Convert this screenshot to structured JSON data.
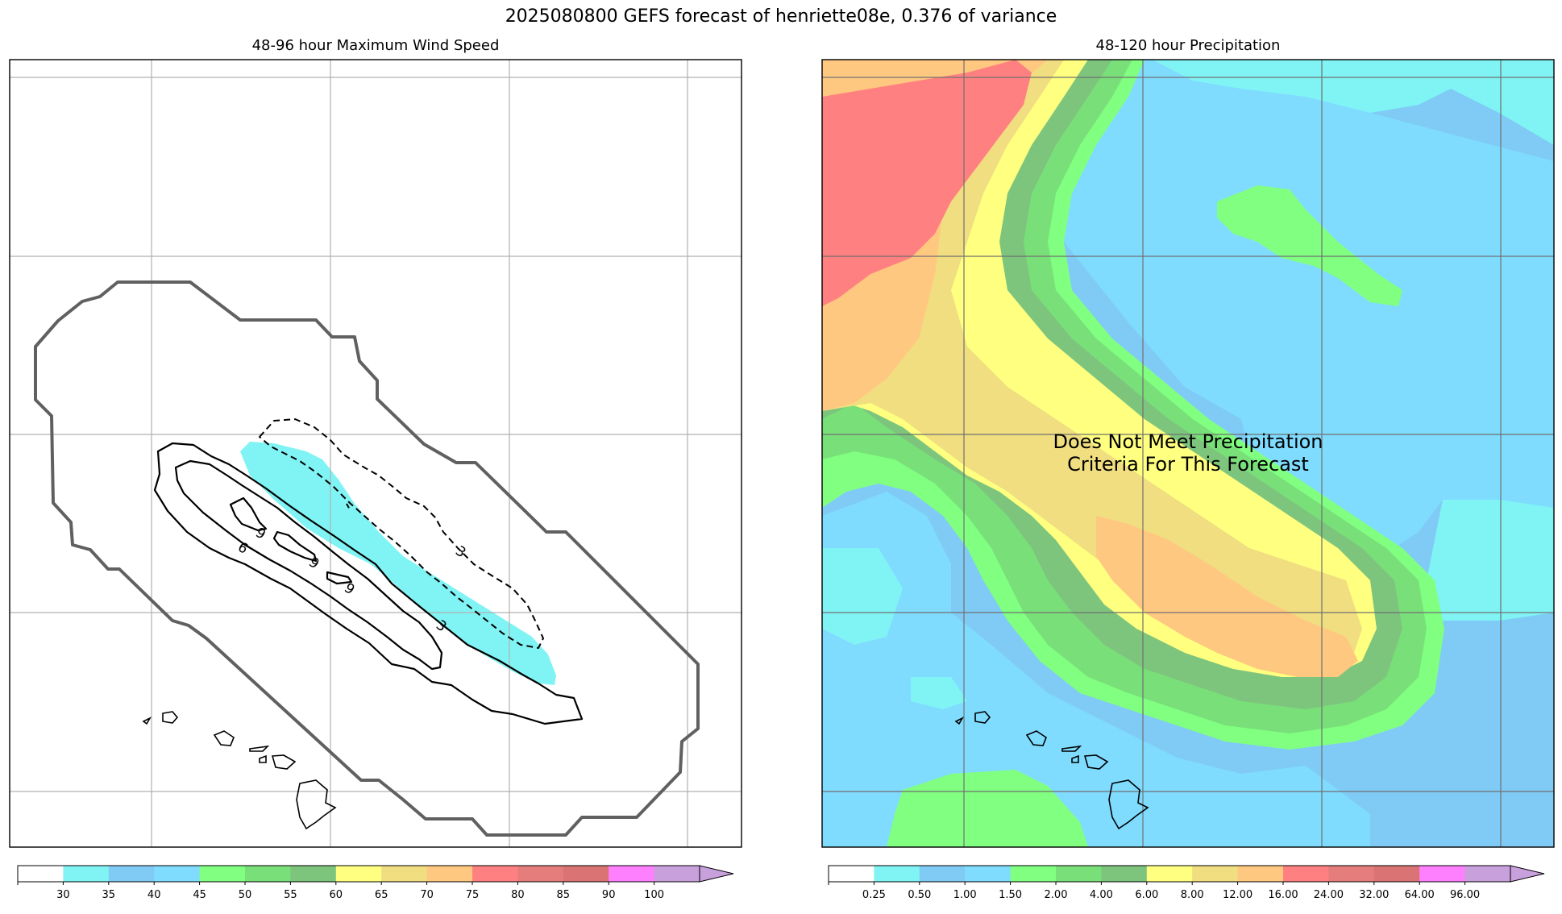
{
  "suptitle": "2025080800 GEFS forecast of henriette08e, 0.376 of variance",
  "chart_data": [
    {
      "type": "contour-map",
      "title": "48-96 hour Maximum Wind Speed",
      "colorbar": {
        "levels": [
          30,
          35,
          40,
          45,
          50,
          55,
          60,
          65,
          70,
          75,
          80,
          85,
          90,
          100
        ],
        "colors": [
          "#ffffff",
          "#80f4f4",
          "#7fcbf6",
          "#7fdcff",
          "#80ff80",
          "#79e079",
          "#7dc57d",
          "#ffff80",
          "#f0de80",
          "#ffc880",
          "#ff8080",
          "#e57d7d",
          "#da7373",
          "#ff80ff",
          "#c8a0dc"
        ],
        "extend": "max"
      },
      "contour_labels": [
        "3",
        "3",
        "6",
        "9",
        "9",
        "9"
      ],
      "shaded_wind_region": "35-40",
      "grid": true
    },
    {
      "type": "filled-contour-map",
      "title": "48-120 hour Precipitation",
      "colorbar": {
        "levels": [
          "0.25",
          "0.50",
          "1.00",
          "1.50",
          "2.00",
          "4.00",
          "6.00",
          "8.00",
          "12.00",
          "16.00",
          "24.00",
          "32.00",
          "64.00",
          "96.00"
        ],
        "colors": [
          "#ffffff",
          "#80f4f4",
          "#7fcbf6",
          "#7fdcff",
          "#80ff80",
          "#79e079",
          "#7dc57d",
          "#ffff80",
          "#f0de80",
          "#ffc880",
          "#ff8080",
          "#e57d7d",
          "#da7373",
          "#ff80ff",
          "#c8a0dc"
        ],
        "extend": "max"
      },
      "annotation": [
        "Does Not Meet Precipitation",
        "Criteria For This Forecast"
      ],
      "grid": true
    }
  ]
}
